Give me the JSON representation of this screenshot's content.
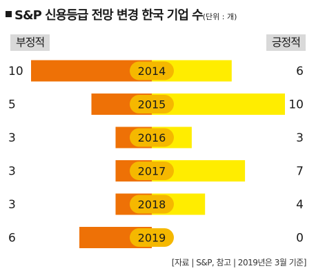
{
  "header": {
    "title": "S&P 신용등급 전망 변경 한국 기업 수",
    "unit": "(단위 : 개)"
  },
  "labels": {
    "negative": "부정적",
    "positive": "긍정적"
  },
  "source": "[자료 | S&P, 참고 | 2019년은 3월 기준]",
  "colors": {
    "negative": "#ee7106",
    "positive": "#ffed00",
    "year_pill": "#f5b800"
  },
  "chart_data": {
    "type": "bar",
    "categories": [
      "2014",
      "2015",
      "2016",
      "2017",
      "2018",
      "2019"
    ],
    "series": [
      {
        "name": "부정적",
        "values": [
          10,
          5,
          3,
          3,
          3,
          6
        ]
      },
      {
        "name": "긍정적",
        "values": [
          6,
          10,
          3,
          7,
          4,
          0
        ]
      }
    ],
    "title": "S&P 신용등급 전망 변경 한국 기업 수",
    "xlabel": "",
    "ylabel": ""
  }
}
